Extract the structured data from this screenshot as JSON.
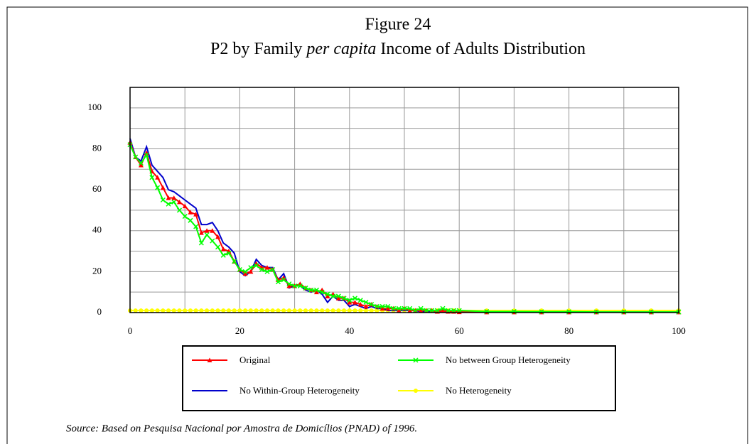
{
  "chart_data": {
    "type": "line",
    "title": "Figure 24",
    "subtitle": [
      "P2 by Family",
      "per capita",
      "Income of Adults Distribution"
    ],
    "source": "Source: Based on Pesquisa Nacional por Amostra de Domicílios (PNAD) of 1996.",
    "x": [
      0,
      1,
      2,
      3,
      4,
      5,
      6,
      7,
      8,
      9,
      10,
      11,
      12,
      13,
      14,
      15,
      16,
      17,
      18,
      19,
      20,
      21,
      22,
      23,
      24,
      25,
      26,
      27,
      28,
      29,
      30,
      31,
      32,
      33,
      34,
      35,
      36,
      37,
      38,
      39,
      40,
      41,
      42,
      43,
      44,
      45,
      46,
      47,
      48,
      49,
      50,
      51,
      52,
      53,
      54,
      55,
      56,
      57,
      58,
      59,
      60,
      65,
      70,
      75,
      80,
      85,
      90,
      95,
      100
    ],
    "series": [
      {
        "name": "Original",
        "color": "#ff0000",
        "marker": "triangle",
        "values": [
          83,
          76,
          72,
          78,
          69,
          66,
          61,
          56,
          56,
          54,
          52,
          49,
          48,
          39,
          40,
          40,
          37,
          31,
          30,
          25,
          21,
          19,
          20,
          24,
          22,
          22,
          21,
          16,
          17,
          13,
          13,
          14,
          12,
          11,
          10,
          11,
          8,
          9,
          7,
          7,
          5,
          5,
          4,
          3,
          4,
          3,
          2,
          2,
          2,
          1,
          2,
          1,
          1,
          1,
          1,
          1,
          0.5,
          1,
          0.5,
          0.5,
          0.3,
          0.2,
          0.2,
          0.2,
          0.2,
          0.2,
          0.2,
          0.2,
          0.2
        ]
      },
      {
        "name": "No between Group Heterogeneity",
        "color": "#00ff00",
        "marker": "cross",
        "values": [
          82,
          76,
          73,
          77,
          66,
          61,
          55,
          53,
          54,
          50,
          47,
          45,
          42,
          34,
          38,
          35,
          32,
          28,
          29,
          25,
          21,
          20,
          22,
          23,
          21,
          20,
          21,
          15,
          16,
          14,
          13,
          13,
          12,
          11,
          11,
          10,
          9,
          8,
          8,
          7,
          6,
          7,
          6,
          5,
          4,
          3,
          3,
          3,
          2,
          2,
          2,
          2,
          1,
          2,
          1,
          1,
          1,
          2,
          1,
          1,
          1,
          0.5,
          0.5,
          0.4,
          0.4,
          0.3,
          0.3,
          0.3,
          0.3
        ]
      },
      {
        "name": "No Within-Group Heterogeneity",
        "color": "#0000cc",
        "marker": "none",
        "values": [
          85,
          76,
          74,
          81,
          72,
          69,
          66,
          60,
          59,
          57,
          55,
          53,
          51,
          43,
          43,
          44,
          40,
          34,
          32,
          29,
          20,
          18,
          20,
          26,
          23,
          22,
          22,
          16,
          19,
          12,
          13,
          13,
          11,
          10,
          11,
          9,
          5,
          8,
          6,
          6,
          3,
          4,
          3,
          2,
          3,
          2,
          2,
          1,
          1,
          1,
          1,
          1,
          1,
          0.5,
          0.5,
          0.5,
          0.5,
          0.5,
          0.3,
          0.3,
          0.3,
          0.2,
          0.2,
          0.2,
          0.2,
          0.2,
          0.2,
          0.2,
          0.2
        ]
      },
      {
        "name": "No Heterogeneity",
        "color": "#ffff00",
        "marker": "circle",
        "values": [
          1,
          1,
          1,
          1,
          1,
          1,
          1,
          1,
          1,
          1,
          1,
          1,
          1,
          1,
          1,
          1,
          1,
          1,
          1,
          1,
          1,
          1,
          1,
          1,
          1,
          1,
          1,
          1,
          1,
          1,
          1,
          1,
          1,
          1,
          1,
          1,
          1,
          1,
          1,
          1,
          1,
          1,
          1,
          1,
          1,
          1,
          1,
          1,
          1,
          1,
          1,
          1,
          1,
          1,
          1,
          1,
          1,
          1,
          1,
          1,
          1,
          1,
          1,
          1,
          1,
          1,
          1,
          1,
          1
        ]
      }
    ],
    "xlim": [
      0,
      100
    ],
    "xticks": [
      0,
      20,
      40,
      60,
      80,
      100
    ],
    "xminor": [
      10,
      30,
      50,
      70,
      90
    ],
    "ylim": [
      0,
      110
    ],
    "yticks": [
      0,
      20,
      40,
      60,
      80,
      100
    ],
    "yminor": [
      10,
      30,
      50,
      70,
      90,
      110
    ],
    "grid": true
  }
}
